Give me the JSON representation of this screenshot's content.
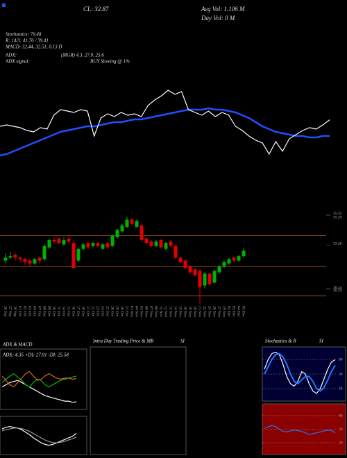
{
  "header": {
    "close": "CL: 32.87",
    "avg_vol": "Avg Vol: 1.106 M",
    "day_vol": "Day Vol: 0 M",
    "stoch": "Stochastics: 79.48",
    "rsi": "R: 14/3: 41.76 / 39.41",
    "macd": "MACD: 32.44, 32.51, 0.13 D",
    "adx": "ADX:",
    "adx_vals": "(MGR) 4.3, 27.9, 25.6",
    "adx_signal": "ADX  signal:",
    "signal": "BUY Slowing @ 1%"
  },
  "chart_data": [
    {
      "type": "candlestick",
      "x": [
        "26 Sep",
        "27 Sep",
        "30 Sep",
        "01 Oct",
        "02 Oct",
        "03 Oct",
        "04 Oct",
        "07 Oct",
        "08 Oct",
        "09 Oct",
        "10 Oct",
        "11 Oct",
        "14 Oct",
        "15 Oct",
        "16 Oct",
        "17 Oct",
        "18 Oct",
        "21 Oct",
        "22 Oct",
        "23 Oct",
        "24 Oct",
        "25 Oct",
        "28 Oct",
        "29 Oct",
        "30 Oct",
        "31 Oct",
        "01 Nov",
        "04 Nov",
        "05 Nov",
        "06 Nov",
        "07 Nov",
        "08 Nov",
        "11 Nov",
        "12 Nov",
        "13 Nov",
        "14 Nov",
        "15 Nov",
        "18 Nov",
        "19 Nov",
        "20 Nov",
        "21 Nov",
        "22 Nov",
        "25 Nov",
        "26 Nov",
        "27 Nov",
        "29 Nov",
        "02 Dec",
        "03 Dec",
        "04 Dec",
        "05 Dec"
      ],
      "open": [
        32.2,
        32.4,
        32.6,
        32.4,
        32.3,
        32.2,
        32.0,
        32.4,
        32.3,
        33.1,
        33.6,
        33.7,
        33.3,
        33.7,
        33.4,
        32.2,
        33.0,
        33.4,
        33.2,
        33.4,
        33.0,
        33.4,
        33.2,
        33.8,
        34.2,
        34.5,
        35.0,
        34.5,
        34.6,
        33.7,
        33.5,
        33.2,
        33.6,
        33.0,
        33.5,
        33.2,
        32.4,
        32.2,
        31.8,
        31.6,
        31.5,
        30.5,
        31.3,
        30.7,
        31.4,
        31.8,
        32.0,
        32.4,
        32.2,
        32.5
      ],
      "high": [
        32.7,
        32.8,
        32.7,
        32.5,
        32.4,
        32.3,
        32.4,
        32.5,
        33.3,
        33.7,
        33.8,
        33.8,
        33.8,
        33.9,
        33.6,
        33.1,
        33.4,
        33.5,
        33.5,
        33.5,
        33.4,
        33.5,
        34.0,
        34.4,
        34.7,
        35.2,
        35.1,
        35.0,
        34.7,
        33.8,
        33.6,
        33.6,
        33.7,
        33.5,
        33.6,
        33.3,
        32.5,
        32.3,
        31.9,
        31.7,
        31.6,
        31.4,
        31.4,
        31.6,
        31.9,
        32.2,
        32.4,
        32.5,
        32.6,
        33.0
      ],
      "low": [
        32.0,
        32.3,
        32.2,
        32.1,
        31.9,
        31.8,
        31.9,
        32.0,
        32.2,
        33.0,
        33.3,
        33.3,
        33.2,
        33.4,
        31.6,
        32.1,
        32.9,
        33.0,
        33.1,
        33.1,
        32.9,
        33.0,
        33.1,
        33.7,
        34.1,
        34.4,
        34.6,
        34.4,
        33.5,
        33.3,
        33.1,
        33.1,
        33.0,
        32.9,
        33.1,
        32.3,
        32.0,
        31.6,
        31.3,
        31.1,
        29.2,
        30.3,
        30.5,
        30.6,
        31.3,
        31.7,
        31.9,
        32.1,
        32.1,
        32.4
      ],
      "close": [
        32.4,
        32.5,
        32.4,
        32.3,
        32.1,
        32.0,
        32.3,
        32.2,
        33.2,
        33.6,
        33.5,
        33.4,
        33.6,
        33.5,
        31.7,
        33.0,
        33.3,
        33.1,
        33.4,
        33.2,
        33.3,
        33.1,
        33.9,
        34.3,
        34.6,
        35.0,
        34.7,
        34.9,
        33.6,
        33.4,
        33.2,
        33.5,
        33.1,
        33.4,
        33.2,
        32.4,
        32.1,
        31.7,
        31.4,
        31.2,
        30.4,
        31.3,
        30.6,
        31.5,
        31.8,
        32.1,
        32.3,
        32.2,
        32.5,
        32.87
      ],
      "ma": [
        30.3,
        30.4,
        30.6,
        30.8,
        31.0,
        31.2,
        31.4,
        31.6,
        31.8,
        32.0,
        32.1,
        32.2,
        32.3,
        32.4,
        32.4,
        32.5,
        32.6,
        32.7,
        32.7,
        32.8,
        32.9,
        32.9,
        33.0,
        33.1,
        33.2,
        33.3,
        33.4,
        33.5,
        33.6,
        33.6,
        33.6,
        33.7,
        33.6,
        33.6,
        33.5,
        33.4,
        33.2,
        33.0,
        32.7,
        32.4,
        32.2,
        32.0,
        31.9,
        31.8,
        31.7,
        31.7,
        31.6,
        31.6,
        31.7,
        31.7
      ],
      "levels": [
        33.9,
        31.8,
        29.8
      ],
      "ylim": [
        29.05,
        35.8
      ],
      "yticks": [
        35.32,
        35.29,
        33.26,
        30.29,
        30.24
      ],
      "up_color": "#00b000",
      "down_color": "#e00000",
      "line_color": "#ffffff",
      "ma_color": "#1e50ff",
      "level_color": "#b05a20"
    },
    {
      "type": "line",
      "title": "ADX  & MACD",
      "subtitle": "ADX: 4.35 +DI: 27.91 -DI: 25.58",
      "ylim": [
        0,
        50
      ],
      "series": [
        {
          "name": "ADX",
          "color": "#ffffff",
          "values": [
            18,
            20,
            22,
            23,
            24,
            22,
            20,
            18,
            16,
            14,
            12,
            10,
            9,
            8,
            7,
            6,
            5,
            5,
            4,
            4.35
          ]
        },
        {
          "name": "+DI",
          "color": "#00c000",
          "values": [
            22,
            25,
            28,
            30,
            27,
            24,
            20,
            18,
            22,
            25,
            24,
            20,
            18,
            20,
            22,
            24,
            25,
            26,
            27,
            27.91
          ]
        },
        {
          "name": "-DI",
          "color": "#e06020",
          "values": [
            28,
            24,
            20,
            18,
            22,
            26,
            30,
            32,
            28,
            24,
            25,
            28,
            30,
            28,
            26,
            25,
            26,
            26,
            25,
            25.58
          ]
        }
      ]
    },
    {
      "type": "line",
      "ylim": [
        -1,
        1
      ],
      "series": [
        {
          "name": "MACD",
          "color": "#ffffff",
          "values": [
            0.4,
            0.5,
            0.55,
            0.5,
            0.45,
            0.35,
            0.2,
            0.05,
            -0.15,
            -0.3,
            -0.45,
            -0.55,
            -0.6,
            -0.55,
            -0.45,
            -0.35,
            -0.25,
            -0.15,
            -0.05,
            0.13
          ]
        },
        {
          "name": "Signal",
          "color": "#999999",
          "values": [
            0.3,
            0.35,
            0.4,
            0.45,
            0.45,
            0.42,
            0.35,
            0.25,
            0.12,
            -0.02,
            -0.15,
            -0.28,
            -0.38,
            -0.44,
            -0.45,
            -0.42,
            -0.36,
            -0.28,
            -0.2,
            -0.1
          ]
        }
      ]
    },
    {
      "type": "panel",
      "title": "Intra Day Trading Price  & MR",
      "subtitle": "SI"
    },
    {
      "type": "line",
      "title": "Stochastics & R",
      "subtitle": "SI",
      "ylim": [
        0,
        100
      ],
      "yticks": [
        80,
        50,
        20
      ],
      "background": "#000033",
      "series": [
        {
          "name": "%K",
          "color": "#ffffff",
          "values": [
            60,
            80,
            92,
            95,
            90,
            70,
            45,
            30,
            25,
            35,
            55,
            50,
            30,
            15,
            10,
            20,
            40,
            60,
            75,
            79.48
          ]
        },
        {
          "name": "%D",
          "color": "#1e78ff",
          "values": [
            50,
            65,
            80,
            90,
            92,
            85,
            70,
            50,
            35,
            30,
            38,
            45,
            45,
            35,
            20,
            15,
            22,
            38,
            55,
            68
          ]
        }
      ]
    },
    {
      "type": "line",
      "ylim": [
        0,
        100
      ],
      "yticks": [
        80,
        50,
        20
      ],
      "background": "#8b0000",
      "series": [
        {
          "name": "RSI",
          "color": "#1e78ff",
          "values": [
            52,
            55,
            58,
            56,
            50,
            45,
            44,
            46,
            48,
            47,
            45,
            42,
            38,
            40,
            42,
            44,
            46,
            48,
            47,
            41.76
          ]
        }
      ]
    }
  ]
}
